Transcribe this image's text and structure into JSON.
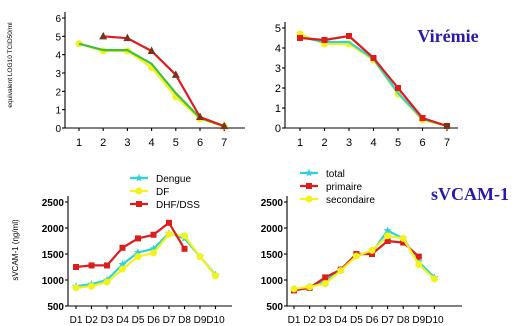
{
  "colors": {
    "title": "#2a1aa8",
    "teal": "#2fd2d8",
    "yellow": "#f2f21c",
    "red": "#dd1c1c",
    "green": "#3fbf3f",
    "dark_triangle": "#7a3320"
  },
  "chart_data": [
    {
      "type": "line",
      "ylabel": "equivalent LOG10 TCID50/ml",
      "categories": [
        "1",
        "2",
        "3",
        "4",
        "5",
        "6",
        "7"
      ],
      "ylim": [
        0,
        6
      ],
      "yticks": [
        "0",
        "1",
        "2",
        "3",
        "4",
        "5",
        "6"
      ],
      "series": [
        {
          "color": "#f2f21c",
          "marker": "circle",
          "values": [
            4.6,
            4.2,
            4.2,
            3.3,
            1.7,
            0.5,
            0.1
          ]
        },
        {
          "color": "#3fbf3f",
          "marker": "none",
          "values": [
            4.6,
            4.25,
            4.25,
            3.5,
            1.9,
            0.55,
            0.1
          ]
        },
        {
          "color": "#dd1c1c",
          "marker": "triangle",
          "values": [
            null,
            5.0,
            4.9,
            4.2,
            2.9,
            0.6,
            0.1
          ]
        }
      ]
    },
    {
      "type": "line",
      "title": "Virémie",
      "categories": [
        "1",
        "2",
        "3",
        "4",
        "5",
        "6",
        "7"
      ],
      "ylim": [
        0,
        5
      ],
      "yticks": [
        "0",
        "1",
        "2",
        "3",
        "4",
        "5"
      ],
      "series": [
        {
          "color": "#f2f21c",
          "marker": "circle",
          "values": [
            4.7,
            4.2,
            4.2,
            3.4,
            1.7,
            0.4,
            0.1
          ]
        },
        {
          "color": "#2fd2d8",
          "marker": "none",
          "values": [
            4.55,
            4.3,
            4.3,
            3.45,
            1.75,
            0.45,
            0.1
          ]
        },
        {
          "color": "#dd1c1c",
          "marker": "square",
          "values": [
            4.5,
            4.4,
            4.6,
            3.5,
            2.0,
            0.5,
            0.1
          ]
        }
      ]
    },
    {
      "type": "line",
      "ylabel": "sVCAM-1 (ηg/ml)",
      "categories": [
        "D1",
        "D2",
        "D3",
        "D4",
        "D5",
        "D6",
        "D7",
        "D8",
        "D9",
        "D10"
      ],
      "ylim": [
        500,
        2500
      ],
      "yticks": [
        "500",
        "1000",
        "1500",
        "2000",
        "2500"
      ],
      "legend": [
        "Dengue",
        "DF",
        "DHF/DSS"
      ],
      "series": [
        {
          "name": "Dengue",
          "color": "#2fd2d8",
          "marker": "star",
          "values": [
            880,
            920,
            1000,
            1300,
            1530,
            1600,
            1900,
            1800,
            1450,
            1100
          ]
        },
        {
          "name": "DF",
          "color": "#f2f21c",
          "marker": "circle",
          "values": [
            850,
            880,
            960,
            1210,
            1450,
            1520,
            1880,
            1850,
            1450,
            1080
          ]
        },
        {
          "name": "DHF/DSS",
          "color": "#dd1c1c",
          "marker": "square",
          "values": [
            1250,
            1280,
            1280,
            1620,
            1800,
            1870,
            2100,
            1600,
            null,
            null
          ]
        }
      ]
    },
    {
      "type": "line",
      "title": "sVCAM-1",
      "categories": [
        "D1",
        "D2",
        "D3",
        "D4",
        "D5",
        "D6",
        "D7",
        "D8",
        "D9",
        "D10"
      ],
      "ylim": [
        500,
        2500
      ],
      "yticks": [
        "500",
        "1000",
        "1500",
        "2000",
        "2500"
      ],
      "legend": [
        "total",
        "primaire",
        "secondaire"
      ],
      "series": [
        {
          "name": "total",
          "color": "#2fd2d8",
          "marker": "star",
          "values": [
            800,
            870,
            980,
            1200,
            1470,
            1530,
            1950,
            1800,
            1350,
            1050
          ]
        },
        {
          "name": "primaire",
          "color": "#dd1c1c",
          "marker": "square",
          "values": [
            800,
            850,
            1050,
            1200,
            1500,
            1500,
            1750,
            1720,
            1450,
            null
          ]
        },
        {
          "name": "secondaire",
          "color": "#f2f21c",
          "marker": "circle",
          "values": [
            830,
            870,
            930,
            1180,
            1460,
            1570,
            1850,
            1800,
            1300,
            1020
          ]
        }
      ]
    }
  ]
}
